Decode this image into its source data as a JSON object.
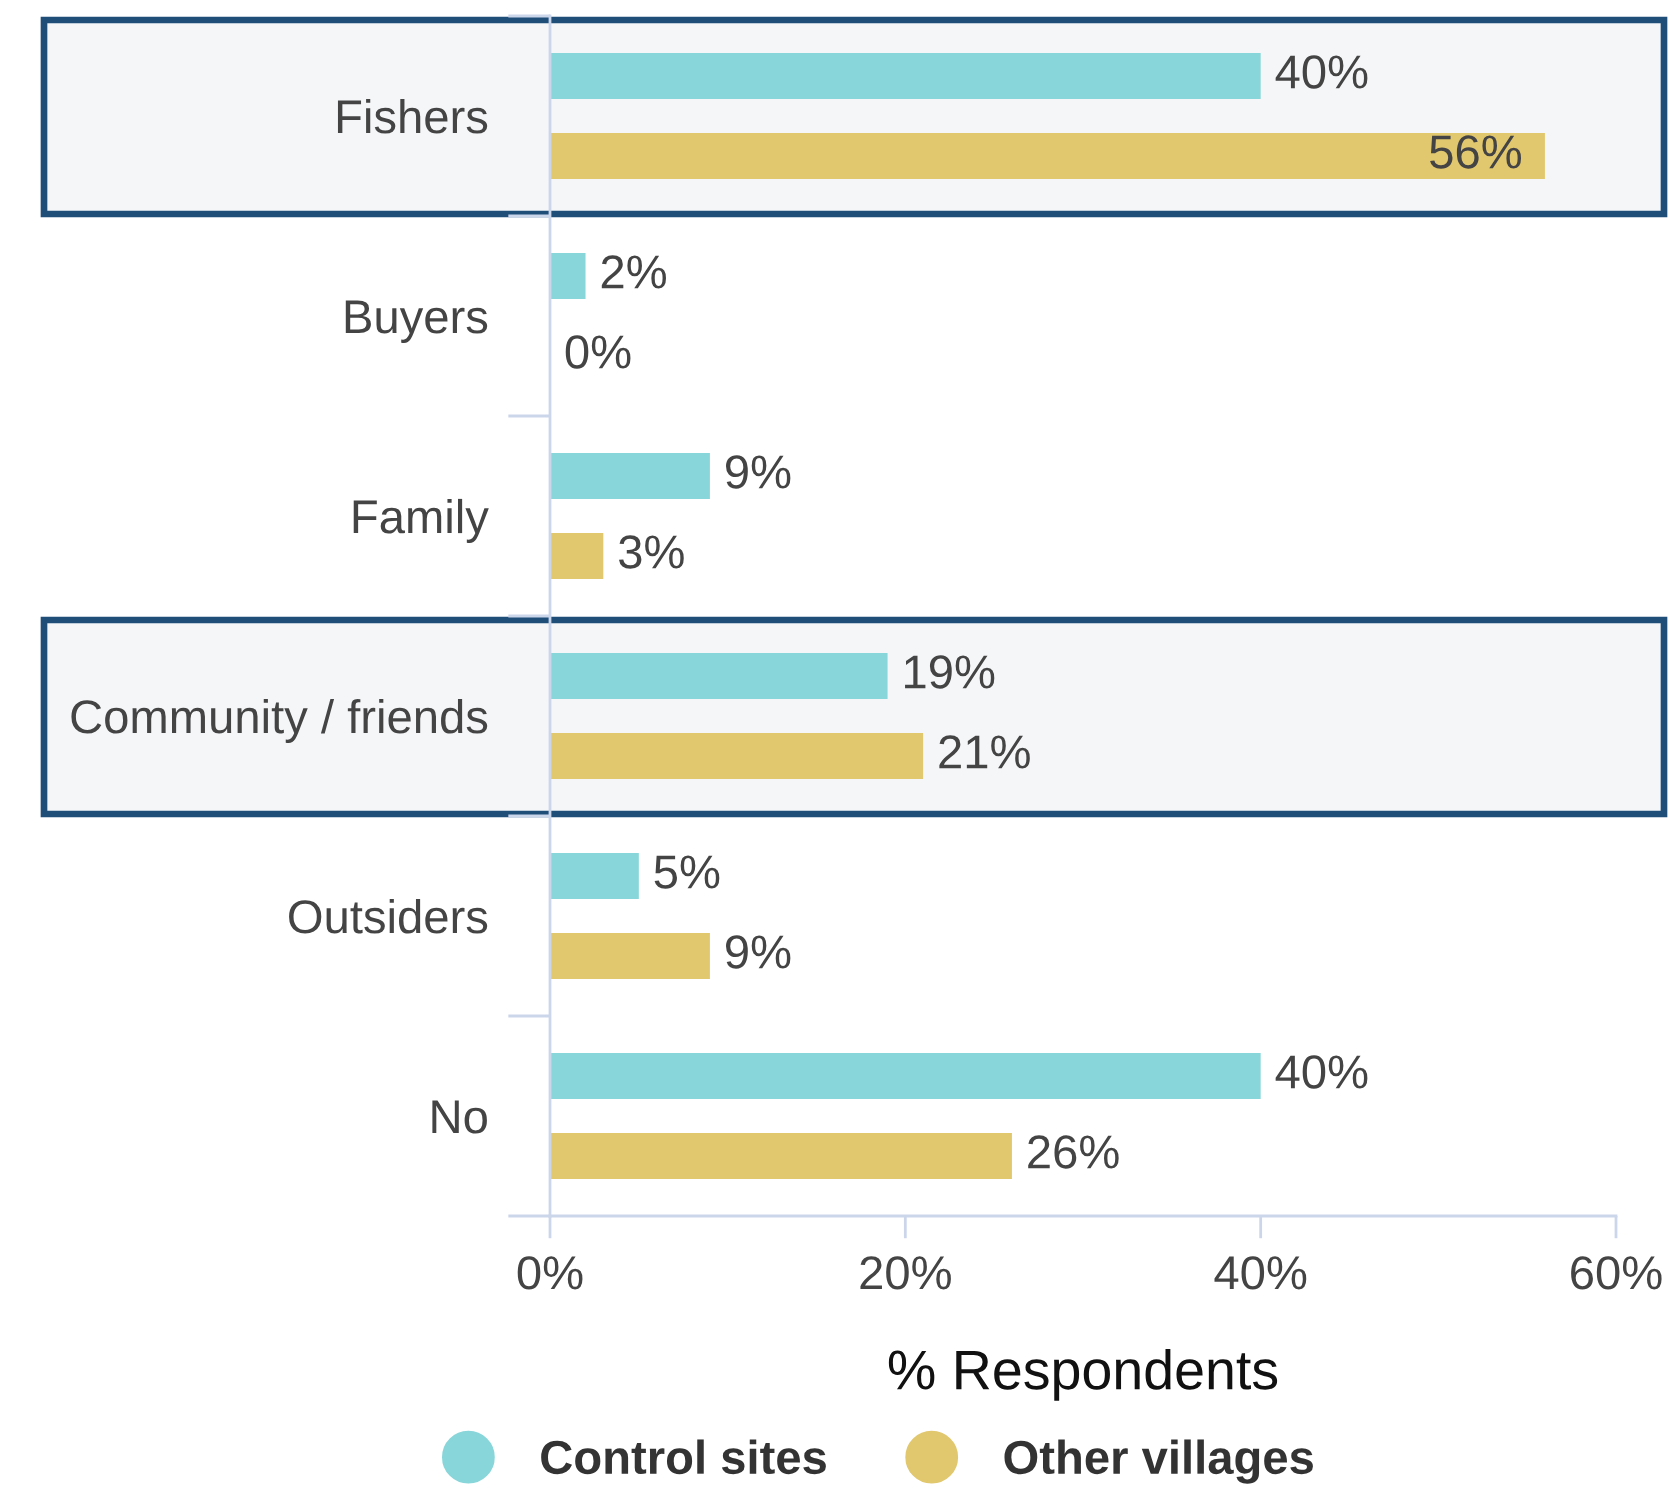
{
  "chart_data": {
    "type": "bar",
    "orientation": "horizontal",
    "categories": [
      "Fishers",
      "Buyers",
      "Family",
      "Community / friends",
      "Outsiders",
      "No"
    ],
    "series": [
      {
        "name": "Control sites",
        "color": "#88d6da",
        "values": [
          40,
          2,
          9,
          19,
          5,
          40
        ],
        "value_labels": [
          "40%",
          "2%",
          "9%",
          "19%",
          "5%",
          "40%"
        ]
      },
      {
        "name": "Other villages",
        "color": "#e1c76e",
        "values": [
          56,
          0,
          3,
          21,
          9,
          26
        ],
        "value_labels": [
          "56%",
          "0%",
          "3%",
          "21%",
          "9%",
          "26%"
        ]
      }
    ],
    "xlabel": "% Respondents",
    "xlim": [
      0,
      60
    ],
    "xticks": [
      {
        "value": 0,
        "label": "0%"
      },
      {
        "value": 20,
        "label": "20%"
      },
      {
        "value": 40,
        "label": "40%"
      },
      {
        "value": 60,
        "label": "60%"
      }
    ],
    "bands": [
      {
        "axis": "y",
        "from": "Fishers",
        "to": "Fishers",
        "color": "#1f4e79"
      },
      {
        "axis": "y",
        "from": "Community / friends",
        "to": "Community / friends",
        "color": "#1f4e79"
      }
    ],
    "grid": false,
    "legend": "bottom"
  }
}
